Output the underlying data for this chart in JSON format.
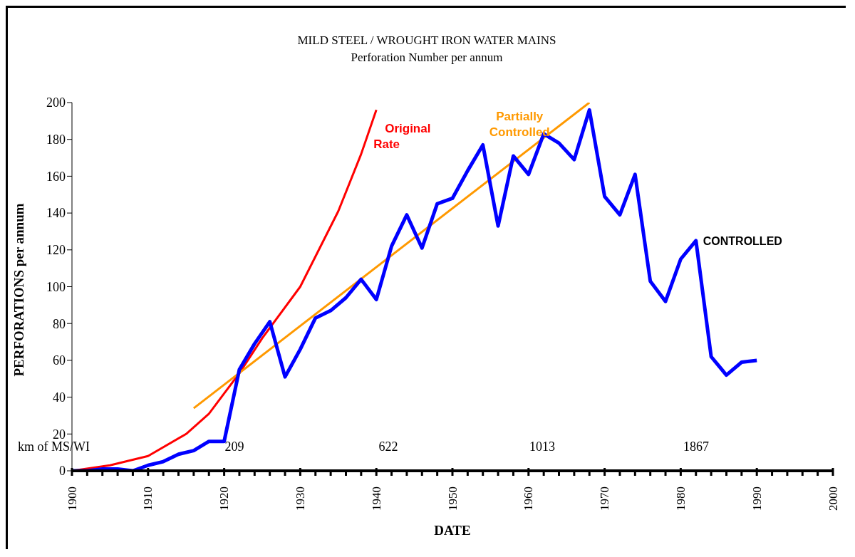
{
  "chart_data": {
    "type": "line",
    "title": "MILD STEEL / WROUGHT IRON WATER MAINS",
    "subtitle": "Perforation Number per annum",
    "xlabel": "DATE",
    "ylabel": "PERFORATIONS  per annum",
    "xlim": [
      1900,
      2000
    ],
    "xticks": [
      1900,
      {
        "value": 1902,
        "label": null
      },
      {
        "value": 1904,
        "label": null
      },
      {
        "value": 1906,
        "label": null
      },
      {
        "value": 1908,
        "label": null
      },
      1910,
      {
        "value": 1912,
        "label": null
      },
      {
        "value": 1914,
        "label": null
      },
      {
        "value": 1916,
        "label": null
      },
      {
        "value": 1918,
        "label": null
      },
      1920,
      {
        "value": 1922,
        "label": null
      },
      {
        "value": 1924,
        "label": null
      },
      {
        "value": 1926,
        "label": null
      },
      {
        "value": 1928,
        "label": null
      },
      1930,
      {
        "value": 1932,
        "label": null
      },
      {
        "value": 1934,
        "label": null
      },
      {
        "value": 1936,
        "label": null
      },
      {
        "value": 1938,
        "label": null
      },
      1940,
      {
        "value": 1942,
        "label": null
      },
      {
        "value": 1944,
        "label": null
      },
      {
        "value": 1946,
        "label": null
      },
      {
        "value": 1948,
        "label": null
      },
      1950,
      {
        "value": 1952,
        "label": null
      },
      {
        "value": 1954,
        "label": null
      },
      {
        "value": 1956,
        "label": null
      },
      {
        "value": 1958,
        "label": null
      },
      1960,
      {
        "value": 1962,
        "label": null
      },
      {
        "value": 1964,
        "label": null
      },
      {
        "value": 1966,
        "label": null
      },
      {
        "value": 1968,
        "label": null
      },
      1970,
      {
        "value": 1972,
        "label": null
      },
      {
        "value": 1974,
        "label": null
      },
      {
        "value": 1976,
        "label": null
      },
      {
        "value": 1978,
        "label": null
      },
      1980,
      {
        "value": 1982,
        "label": null
      },
      {
        "value": 1984,
        "label": null
      },
      {
        "value": 1986,
        "label": null
      },
      {
        "value": 1988,
        "label": null
      },
      1990,
      {
        "value": 1992,
        "label": null
      },
      {
        "value": 1994,
        "label": null
      },
      {
        "value": 1996,
        "label": null
      },
      {
        "value": 1998,
        "label": null
      },
      2000
    ],
    "ylim": [
      0,
      200
    ],
    "yticks": [
      0,
      20,
      40,
      60,
      80,
      100,
      120,
      140,
      160,
      180,
      200
    ],
    "grid": false,
    "marker": "none",
    "line_style": "solid",
    "series": [
      {
        "name": "Original Rate",
        "color": "#ff0000",
        "x": [
          1900,
          1905,
          1910,
          1915,
          1918,
          1920,
          1922,
          1925,
          1930,
          1935,
          1938,
          1940
        ],
        "values": [
          0,
          3,
          8,
          20,
          31,
          42,
          53,
          72,
          100,
          141,
          172,
          196
        ]
      },
      {
        "name": "Partially Controlled",
        "color": "#ff9900",
        "x": [
          1916,
          1968
        ],
        "values": [
          34,
          200
        ]
      },
      {
        "name": "CONTROLLED",
        "color": "#0000ff",
        "x": [
          1900,
          1902,
          1904,
          1906,
          1908,
          1910,
          1912,
          1914,
          1916,
          1918,
          1920,
          1922,
          1924,
          1926,
          1928,
          1930,
          1932,
          1934,
          1936,
          1938,
          1940,
          1942,
          1944,
          1946,
          1948,
          1950,
          1952,
          1954,
          1956,
          1958,
          1960,
          1962,
          1964,
          1966,
          1968,
          1970,
          1972,
          1974,
          1976,
          1978,
          1980,
          1982,
          1984,
          1986,
          1988,
          1990
        ],
        "values": [
          0,
          0,
          1,
          1,
          0,
          3,
          5,
          9,
          11,
          16,
          16,
          55,
          69,
          81,
          51,
          66,
          83,
          87,
          94,
          104,
          93,
          122,
          139,
          121,
          145,
          148,
          163,
          177,
          133,
          171,
          161,
          183,
          178,
          169,
          196,
          149,
          139,
          161,
          103,
          92,
          115,
          125,
          62,
          52,
          59,
          60
        ]
      }
    ],
    "annotations": [
      "km of MS/WI",
      "209",
      "622",
      "1013",
      "1867"
    ]
  }
}
